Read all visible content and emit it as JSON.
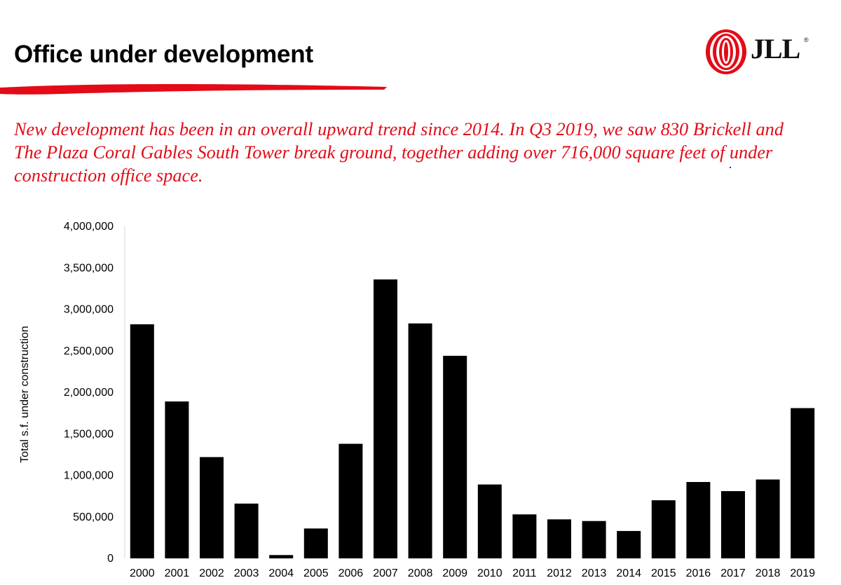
{
  "page": {
    "title": "Office under development",
    "subtitle": "New development has been in an overall upward trend since 2014. In Q3 2019, we saw 830 Brickell and The Plaza Coral Gables South Tower break ground, together adding over 716,000 square feet of under construction office space.",
    "logo_text": "JLL",
    "logo_reg": "®"
  },
  "colors": {
    "accent": "#e30b17",
    "bar": "#000000"
  },
  "chart_data": {
    "type": "bar",
    "title": "",
    "xlabel": "",
    "ylabel": "Total s.f. under construction",
    "ylim": [
      0,
      4000000
    ],
    "yticks": [
      0,
      500000,
      1000000,
      1500000,
      2000000,
      2500000,
      3000000,
      3500000,
      4000000
    ],
    "ytick_labels": [
      "0",
      "500,000",
      "1,000,000",
      "1,500,000",
      "2,000,000",
      "2,500,000",
      "3,000,000",
      "3,500,000",
      "4,000,000"
    ],
    "categories": [
      "2000",
      "2001",
      "2002",
      "2003",
      "2004",
      "2005",
      "2006",
      "2007",
      "2008",
      "2009",
      "2010",
      "2011",
      "2012",
      "2013",
      "2014",
      "2015",
      "2016",
      "2017",
      "2018",
      "2019"
    ],
    "values": [
      2820000,
      1890000,
      1220000,
      660000,
      40000,
      360000,
      1380000,
      3360000,
      2830000,
      2440000,
      890000,
      530000,
      470000,
      450000,
      330000,
      700000,
      920000,
      810000,
      950000,
      1810000
    ],
    "grid": false,
    "legend": "none"
  }
}
